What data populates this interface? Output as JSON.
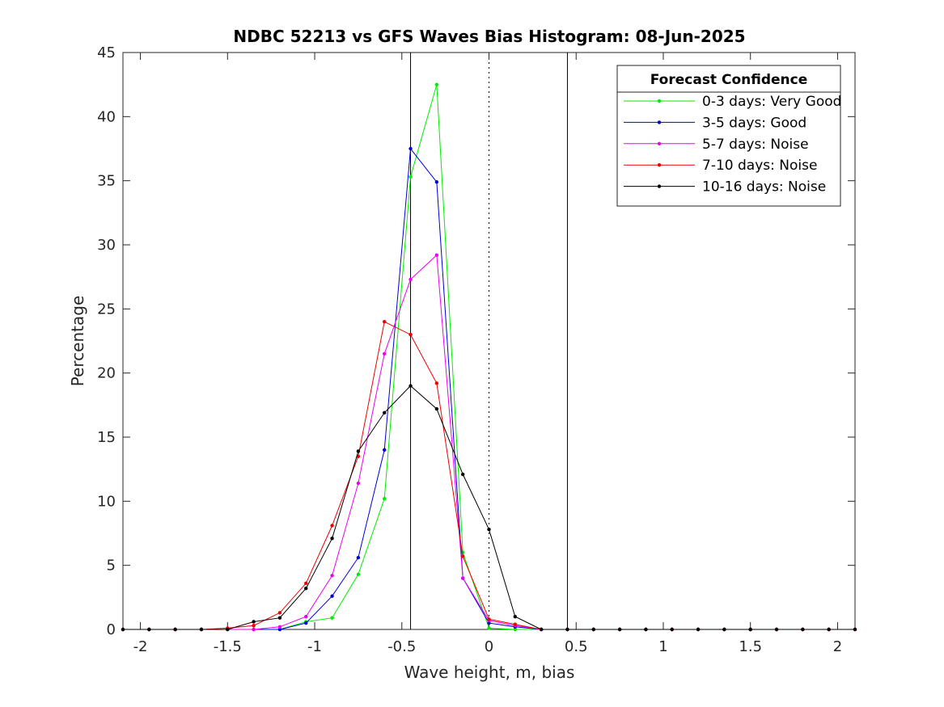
{
  "chart_data": {
    "type": "line",
    "title": "NDBC 52213 vs GFS Waves Bias Histogram: 08-Jun-2025",
    "xlabel": "Wave height, m, bias",
    "ylabel": "Percentage",
    "xlim": [
      -2.1,
      2.1
    ],
    "ylim": [
      0,
      45
    ],
    "xticks": [
      -2,
      -1.5,
      -1,
      -0.5,
      0,
      0.5,
      1,
      1.5,
      2
    ],
    "xtick_labels": [
      "-2",
      "-1.5",
      "-1",
      "-0.5",
      "0",
      "0.5",
      "1",
      "1.5",
      "2"
    ],
    "yticks": [
      0,
      5,
      10,
      15,
      20,
      25,
      30,
      35,
      40,
      45
    ],
    "ytick_labels": [
      "0",
      "5",
      "10",
      "15",
      "20",
      "25",
      "30",
      "35",
      "40",
      "45"
    ],
    "grid": false,
    "reference_lines": [
      {
        "x": -0.45,
        "style": "solid",
        "color": "#000000"
      },
      {
        "x": 0,
        "style": "dotted",
        "color": "#000000"
      },
      {
        "x": 0.45,
        "style": "solid",
        "color": "#000000"
      }
    ],
    "legend": {
      "title": "Forecast Confidence",
      "placement": "top-right"
    },
    "x": [
      -2.1,
      -1.95,
      -1.8,
      -1.65,
      -1.5,
      -1.35,
      -1.2,
      -1.05,
      -0.9,
      -0.75,
      -0.6,
      -0.45,
      -0.3,
      -0.15,
      0,
      0.15,
      0.3,
      0.45,
      0.6,
      0.75,
      0.9,
      1.05,
      1.2,
      1.35,
      1.5,
      1.65,
      1.8,
      1.95,
      2.1
    ],
    "series": [
      {
        "name": "0-3 days: Very Good",
        "color": "#00ee00",
        "values": [
          0,
          0,
          0,
          0,
          0,
          0,
          0,
          0.6,
          0.9,
          4.3,
          10.2,
          35.3,
          42.5,
          6.0,
          0.1,
          0,
          0,
          0,
          0,
          0,
          0,
          0,
          0,
          0,
          0,
          0,
          0,
          0,
          0
        ]
      },
      {
        "name": "3-5 days: Good",
        "color": "#0000dd",
        "values": [
          0,
          0,
          0,
          0,
          0,
          0,
          0,
          0.5,
          2.6,
          5.6,
          14.0,
          37.5,
          34.9,
          4.0,
          0.5,
          0.2,
          0,
          0,
          0,
          0,
          0,
          0,
          0,
          0,
          0,
          0,
          0,
          0,
          0
        ]
      },
      {
        "name": "5-7 days: Noise",
        "color": "#ee00ee",
        "values": [
          0,
          0,
          0,
          0,
          0,
          0,
          0.2,
          1.0,
          4.2,
          11.4,
          21.5,
          27.3,
          29.2,
          4.0,
          0.7,
          0.3,
          0,
          0,
          0,
          0,
          0,
          0,
          0,
          0,
          0,
          0,
          0,
          0,
          0
        ]
      },
      {
        "name": "7-10 days: Noise",
        "color": "#ee0000",
        "values": [
          0,
          0,
          0,
          0,
          0.1,
          0.3,
          1.3,
          3.6,
          8.1,
          13.5,
          24.0,
          23.0,
          19.2,
          5.7,
          0.8,
          0.4,
          0,
          0,
          0,
          0,
          0,
          0,
          0,
          0,
          0,
          0,
          0,
          0,
          0
        ]
      },
      {
        "name": "10-16 days: Noise",
        "color": "#000000",
        "values": [
          0,
          0,
          0,
          0,
          0,
          0.6,
          0.9,
          3.2,
          7.1,
          13.9,
          16.9,
          19.0,
          17.2,
          12.1,
          7.8,
          1.0,
          0,
          0,
          0,
          0,
          0,
          0,
          0,
          0,
          0,
          0,
          0,
          0,
          0
        ]
      }
    ]
  }
}
